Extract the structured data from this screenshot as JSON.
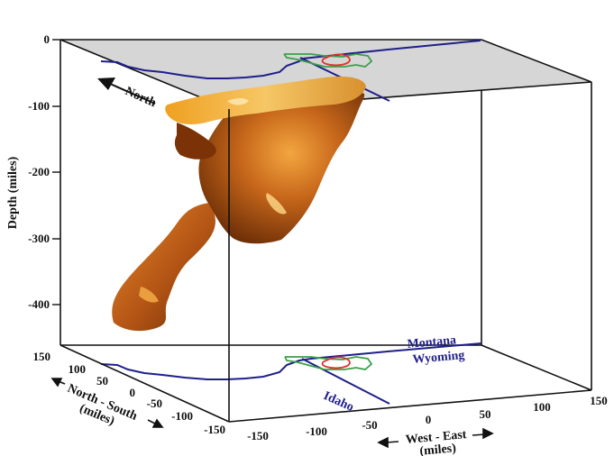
{
  "depth_axis": {
    "title": "Depth (miles)",
    "ticks": [
      "0",
      "-100",
      "-200",
      "-300",
      "-400"
    ]
  },
  "ns_axis": {
    "title_line1": "North - South",
    "title_line2": "(miles)",
    "ticks": [
      "150",
      "100",
      "50",
      "0",
      "-50",
      "-100",
      "-150"
    ]
  },
  "we_axis": {
    "title_line1": "West - East",
    "title_line2": "(miles)",
    "ticks": [
      "-150",
      "-100",
      "-50",
      "0",
      "50",
      "100",
      "150"
    ]
  },
  "north_label": "North",
  "states": {
    "montana": "Montana",
    "wyoming": "Wyoming",
    "idaho": "Idaho"
  },
  "colors": {
    "plume_dark": "#8a3f0a",
    "plume_mid": "#c86a1a",
    "plume_light": "#f4b53a",
    "top_plane": "#d6d6d6",
    "state_border": "#1f1f8a",
    "park_outline": "#3aa14a",
    "caldera_outline": "#e0312a"
  }
}
